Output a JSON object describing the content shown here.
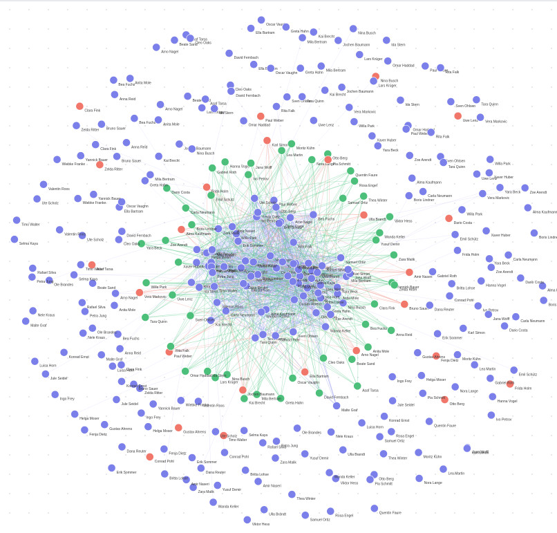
{
  "graph": {
    "legend_colors": {
      "blue": "#7b7fea",
      "green": "#4cbf7a",
      "red": "#f0776a",
      "edge_blue": "#8b91ee",
      "edge_green": "#5cc98a",
      "edge_red": "#f29a90"
    },
    "labels": [
      "Anna Reid",
      "Bea Fuchs",
      "Anita Mole",
      "Arno Nagel",
      "Beate Sand",
      "Asaf Tarsa",
      "Cleo Oaks",
      "David Fernbach",
      "Ella Bartram",
      "Oscar Vaughn",
      "Greta Hahn",
      "Mila Bertram",
      "Kai Brecht",
      "Jochen Baumann",
      "Nina Busch",
      "Lars Krüger",
      "Ida Stern",
      "Omar Haddad",
      "Paul Weber",
      "Rita Falk",
      "Sven Ohlsen",
      "Tara Quinn",
      "Uwe Lenz",
      "Vera Markovic",
      "Willa Park",
      "Xaver Huber",
      "Yara Beck",
      "Zoe Arendt",
      "Alma Kaufmann",
      "Boris Lindner",
      "Carla Neumann",
      "Dario Costa",
      "Emil Schütz",
      "Frida Holm",
      "Gabriel Roth",
      "Hanna Vogel",
      "Ivo Petrov",
      "Jana Wolff",
      "Karl Simon",
      "Lea Martin",
      "Moritz Kühn",
      "Nora Lange",
      "Otto Berg",
      "Pia Schmitt",
      "Quentin Faure",
      "Rosa Engel",
      "Samuel Ortiz",
      "Thea Winter",
      "Ulla Brandt",
      "Viktor Hess",
      "Wanda Keller",
      "Yusuf Demir",
      "Zara Malik",
      "Amir Naseri",
      "Britta Lohse",
      "Conrad Pohl",
      "Dana Reuter",
      "Erik Sommer",
      "Fenja Dietz",
      "Gustav Ahrens",
      "Helga Moser",
      "Ingo Frey",
      "Jule Seidel",
      "Konrad Ernst",
      "Luisa Horn",
      "Malte Graf",
      "Nele Kraus",
      "Ole Brandes",
      "Petra Jung",
      "Rafael Silva",
      "Selma Kaya",
      "Timo Walter",
      "Ute Scholz",
      "Valentin Roos",
      "Wiebke Franke",
      "Yannick Bauer",
      "Zelda Ritter",
      "Bruno Sauer",
      "Clara Fink"
    ]
  }
}
